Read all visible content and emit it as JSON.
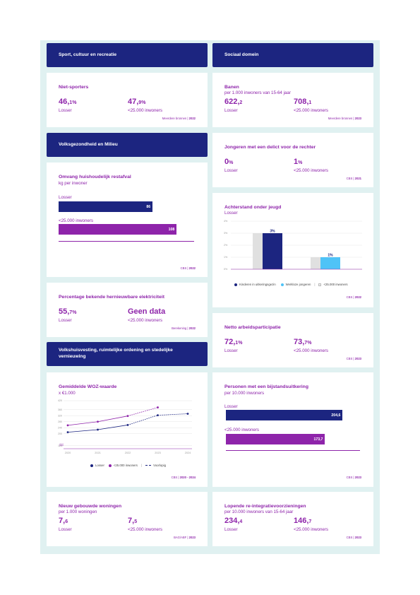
{
  "left": {
    "sport_header": "Sport, cultuur en recreatie",
    "niet_sporters": {
      "title": "Niet-sporters",
      "v1_int": "46,",
      "v1_dec": "1%",
      "v1_label": "Losser",
      "v2_int": "47,",
      "v2_dec": "9%",
      "v2_label": "<25.000 inwoners",
      "source": "Meerdere bronnen",
      "year": "2022"
    },
    "volks_header": "Volksgezondheid en Milieu",
    "restafval": {
      "title": "Omvang huishoudelijk restafval",
      "subtitle": "kg per inwoner",
      "bars": [
        {
          "label": "Losser",
          "value": 86,
          "display": "86",
          "color": "#1c2580"
        },
        {
          "label": "<25.000 inwoners",
          "value": 108,
          "display": "108",
          "color": "#8e24aa"
        }
      ],
      "max": 124,
      "source": "CBS",
      "year": "2022"
    },
    "elektriciteit": {
      "title": "Percentage bekende hernieuwbare elektriciteit",
      "v1_int": "55,",
      "v1_dec": "7%",
      "v1_label": "Losser",
      "v2_text": "Geen data",
      "v2_label": "<25.000 inwoners",
      "source": "Berekening",
      "year": "2022"
    },
    "wonen_header": "Volkshuisvesting, ruimtelijke ordening en stedelijke vernieuwing",
    "woz": {
      "title": "Gemiddelde WOZ-waarde",
      "subtitle": "x €1.000",
      "legend_losser": "Losser",
      "legend_small": "<25.000 inwoners",
      "legend_prelim": "Voorlopig",
      "source": "CBS",
      "year": "2020 - 2024"
    },
    "woningen": {
      "title": "Nieuw gebouwde woningen",
      "subtitle": "per 1.000 woningen",
      "v1_int": "7,",
      "v1_dec": "6",
      "v1_label": "Losser",
      "v2_int": "7,",
      "v2_dec": "5",
      "v2_label": "<25.000 inwoners",
      "source": "BAG/ABF",
      "year": "2023"
    }
  },
  "right": {
    "sociaal_header": "Sociaal domein",
    "banen": {
      "title": "Banen",
      "subtitle": "per 1.000 inwoners van 15-64 jaar",
      "v1_int": "622,",
      "v1_dec": "2",
      "v1_label": "Losser",
      "v2_int": "708,",
      "v2_dec": "1",
      "v2_label": "<25.000 inwoners",
      "source": "Meerdere bronnen",
      "year": "2023"
    },
    "jongeren": {
      "title": "Jongeren met een delict voor de rechter",
      "v1_int": "0",
      "v1_dec": "%",
      "v1_label": "Losser",
      "v2_int": "1",
      "v2_dec": "%",
      "v2_label": "<25.000 inwoners",
      "source": "CBS",
      "year": "2021"
    },
    "achterstand": {
      "title": "Achterstand onder jeugd",
      "subtitle": "Losser",
      "legend1": "Kinderen in uitkeringsgezin",
      "legend2": "Werkloze jongeren",
      "legend3": "<25.000 inwoners",
      "source": "CBS",
      "year": "2022"
    },
    "arbeid": {
      "title": "Netto arbeidsparticipatie",
      "v1_int": "72,",
      "v1_dec": "1%",
      "v1_label": "Losser",
      "v2_int": "73,",
      "v2_dec": "7%",
      "v2_label": "<25.000 inwoners",
      "source": "CBS",
      "year": "2023"
    },
    "bijstand": {
      "title": "Personen met een bijstandsuitkering",
      "subtitle": "per 10.000 inwoners",
      "bars": [
        {
          "label": "Losser",
          "value": 204.6,
          "display": "204,6",
          "color": "#1c2580"
        },
        {
          "label": "<25.000 inwoners",
          "value": 173.7,
          "display": "173,7",
          "color": "#8e24aa"
        }
      ],
      "max": 235,
      "source": "CBS",
      "year": "2023"
    },
    "reintegratie": {
      "title": "Lopende re-integratievoorzieningen",
      "subtitle": "per 10.000 inwoners van 15-64 jaar",
      "v1_int": "234,",
      "v1_dec": "4",
      "v1_label": "Losser",
      "v2_int": "146,",
      "v2_dec": "7",
      "v2_label": "<25.000 inwoners",
      "source": "CBS",
      "year": "2023"
    }
  },
  "chart_data": [
    {
      "type": "line",
      "title": "Gemiddelde WOZ-waarde",
      "ylabel": "x €1.000",
      "x": [
        "2020",
        "2021",
        "2022",
        "2023",
        "2024"
      ],
      "ylim": [
        100,
        420
      ],
      "yticks": [
        120,
        200,
        240,
        280,
        320,
        360,
        420
      ],
      "series": [
        {
          "name": "Losser",
          "values": [
            210,
            227,
            258,
            323,
            333
          ],
          "color": "#1c2580"
        },
        {
          "name": "<25.000 inwoners",
          "values": [
            256,
            280,
            318,
            375,
            null
          ],
          "color": "#8e24aa"
        }
      ],
      "preliminary_from_index": 2,
      "legend": "bottom"
    },
    {
      "type": "bar",
      "title": "Achterstand onder jeugd",
      "categories": [
        "Kinderen in uitkeringsgezin",
        "Werkloze jongeren"
      ],
      "ylim": [
        0,
        4
      ],
      "yticks": [
        "0%",
        "1%",
        "2%",
        "3%",
        "4%"
      ],
      "series": [
        {
          "name": "<25.000 inwoners",
          "values": [
            3.0,
            1.0
          ],
          "color": "#e0e0e0"
        },
        {
          "name": "Losser",
          "values": [
            3.0,
            1.0
          ],
          "colors": [
            "#1c2580",
            "#4fc3f7"
          ]
        }
      ],
      "data_labels": [
        "3%",
        "1%"
      ],
      "legend": "bottom"
    }
  ]
}
